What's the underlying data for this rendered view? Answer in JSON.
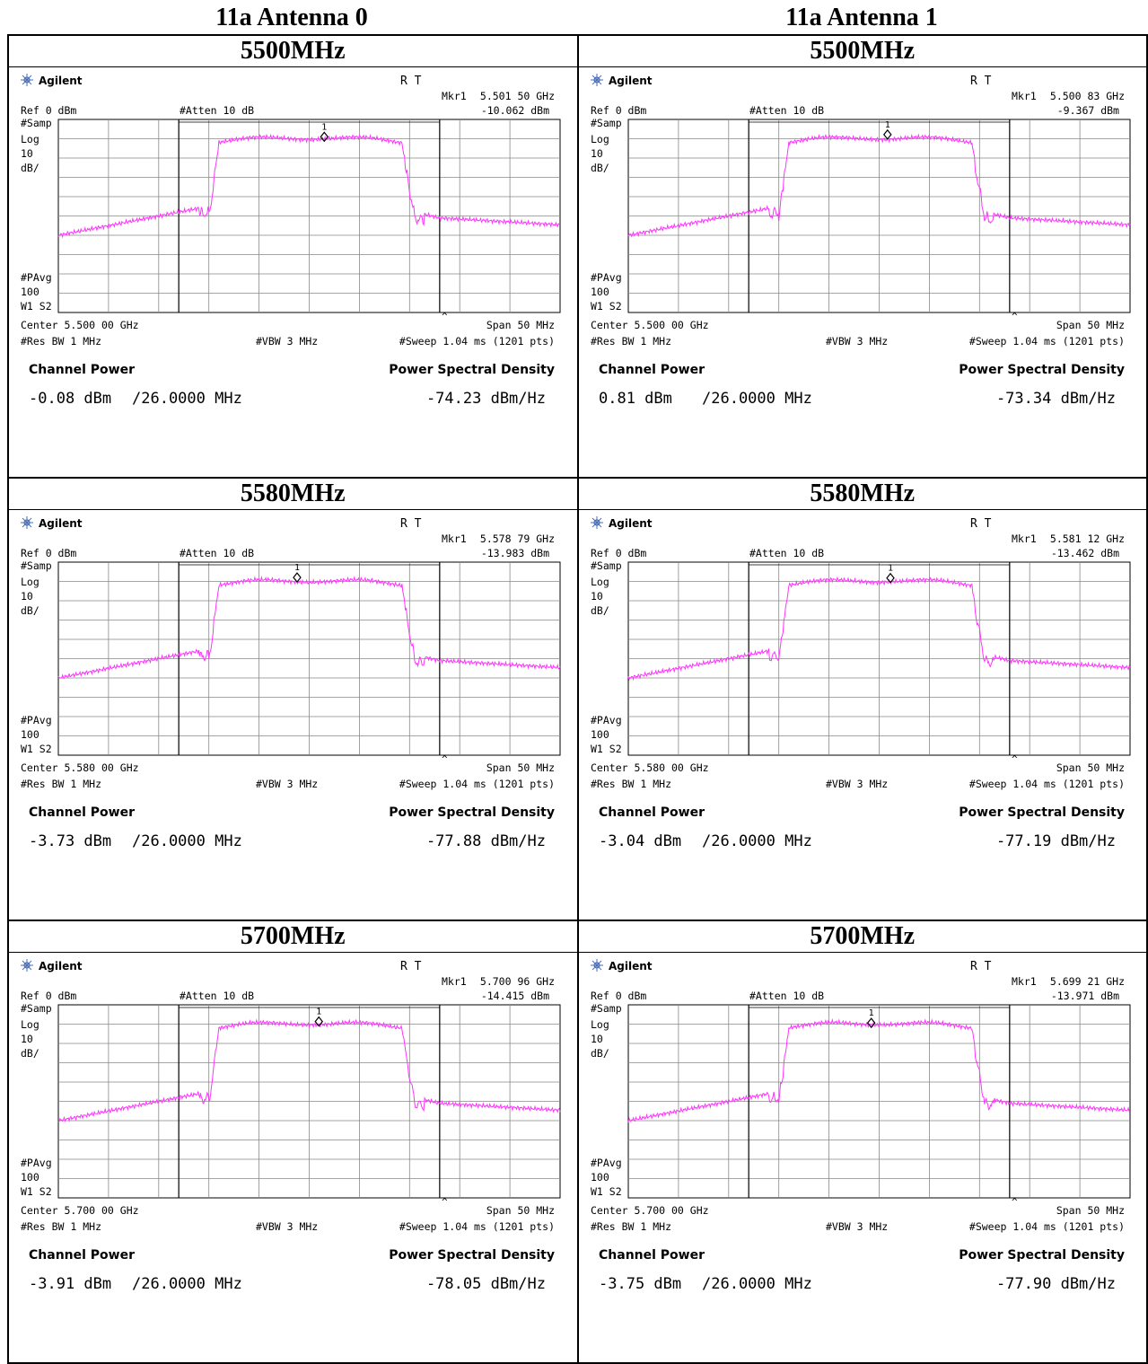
{
  "column_headers": [
    "11a Antenna 0",
    "11a Antenna 1"
  ],
  "instrument": {
    "brand": "Agilent",
    "mode_indicator": "R T",
    "ref": "Ref 0 dBm",
    "atten": "#Atten 10 dB",
    "samp": "#Samp",
    "log": "Log",
    "scale_value": "10",
    "scale_unit": "dB/",
    "pavg": "#PAvg",
    "pavg_count": "100",
    "w1s2": "W1 S2",
    "span": "Span 50 MHz",
    "res_bw": "#Res BW 1 MHz",
    "vbw": "#VBW 3 MHz",
    "sweep": "#Sweep 1.04 ms (1201 pts)",
    "channel_power_label": "Channel Power",
    "psd_label": "Power Spectral Density",
    "bandwidth": "/26.0000 MHz",
    "marker_tag": "1",
    "colors": {
      "trace": "#ff33ff",
      "grid": "#000000",
      "background": "#ffffff"
    }
  },
  "cells": [
    {
      "title": "5500MHz",
      "antenna": "11a Antenna 0",
      "mkr_label": "Mkr1",
      "mkr_freq": "5.501 50 GHz",
      "mkr_level": "-10.062 dBm",
      "center": "Center 5.500 00 GHz",
      "channel_power": "-0.08 dBm",
      "psd": "-74.23 dBm/Hz"
    },
    {
      "title": "5500MHz",
      "antenna": "11a Antenna 1",
      "mkr_label": "Mkr1",
      "mkr_freq": "5.500 83 GHz",
      "mkr_level": "-9.367 dBm",
      "center": "Center 5.500 00 GHz",
      "channel_power": "0.81 dBm",
      "psd": "-73.34 dBm/Hz"
    },
    {
      "title": "5580MHz",
      "antenna": "11a Antenna 0",
      "mkr_label": "Mkr1",
      "mkr_freq": "5.578 79 GHz",
      "mkr_level": "-13.983 dBm",
      "center": "Center 5.580 00 GHz",
      "channel_power": "-3.73 dBm",
      "psd": "-77.88 dBm/Hz"
    },
    {
      "title": "5580MHz",
      "antenna": "11a Antenna 1",
      "mkr_label": "Mkr1",
      "mkr_freq": "5.581 12 GHz",
      "mkr_level": "-13.462 dBm",
      "center": "Center 5.580 00 GHz",
      "channel_power": "-3.04 dBm",
      "psd": "-77.19 dBm/Hz"
    },
    {
      "title": "5700MHz",
      "antenna": "11a Antenna 0",
      "mkr_label": "Mkr1",
      "mkr_freq": "5.700 96 GHz",
      "mkr_level": "-14.415 dBm",
      "center": "Center 5.700 00 GHz",
      "channel_power": "-3.91 dBm",
      "psd": "-78.05 dBm/Hz"
    },
    {
      "title": "5700MHz",
      "antenna": "11a Antenna 1",
      "mkr_label": "Mkr1",
      "mkr_freq": "5.699 21 GHz",
      "mkr_level": "-13.971 dBm",
      "center": "Center 5.700 00 GHz",
      "channel_power": "-3.75 dBm",
      "psd": "-77.90 dBm/Hz"
    }
  ]
}
